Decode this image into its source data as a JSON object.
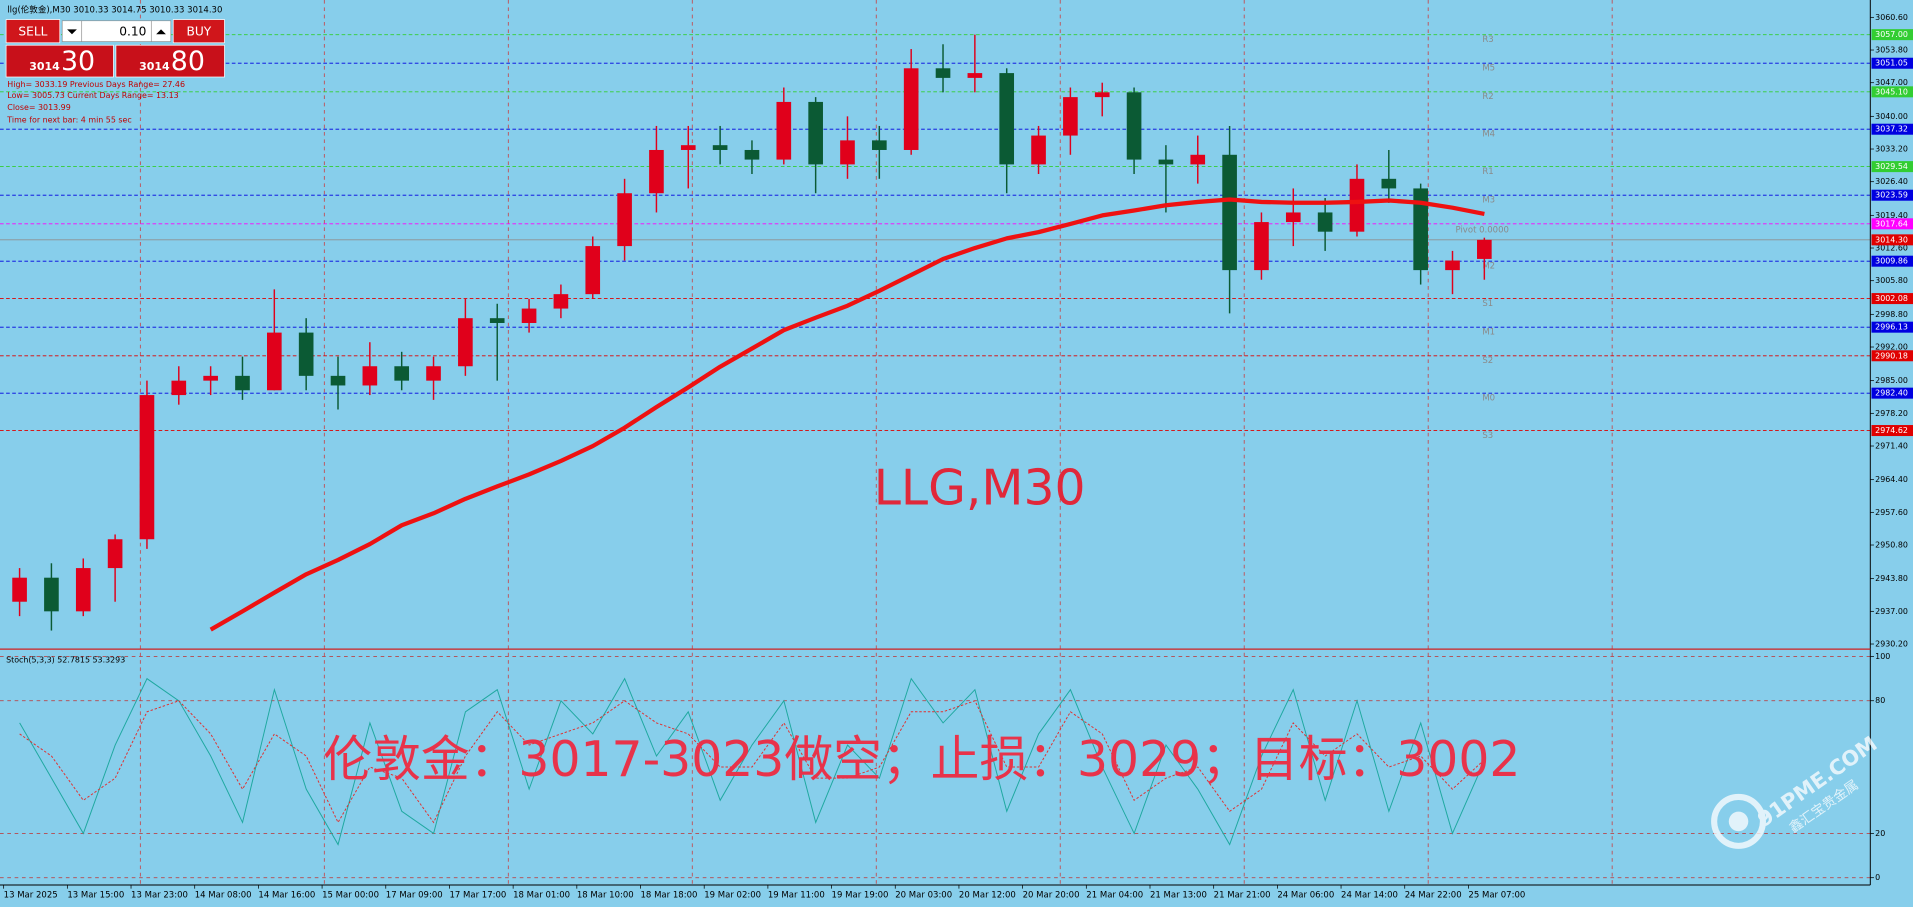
{
  "window": {
    "title": "llg(伦敦金),M30  3010.33 3014.75 3010.33 3014.30"
  },
  "trade_panel": {
    "sell": "SELL",
    "lot": "0.10",
    "buy": "BUY",
    "bid_main": "3014",
    "bid_big": "30",
    "ask_main": "3014",
    "ask_big": "80"
  },
  "info": [
    "High= 3033.19    Previous Days Range= 27.46",
    "Low= 3005.73    Current Days Range= 13.13",
    "Close= 3013.99",
    "Time for next bar: 4 min 55 sec"
  ],
  "logo": {
    "text": "91PME.COM",
    "subtext": "鑫汇宝贵金属"
  },
  "chart_data": [
    {
      "type": "candlestick",
      "watermark": "LLG,M30",
      "categories": [
        "13 Mar 2025",
        null,
        "13 Mar 15:00",
        null,
        "13 Mar 23:00",
        null,
        "14 Mar 08:00",
        null,
        "14 Mar 16:00",
        null,
        "15 Mar 00:00",
        null,
        "17 Mar 09:00",
        null,
        "17 Mar 17:00",
        null,
        "18 Mar 01:00",
        null,
        "18 Mar 10:00",
        null,
        "18 Mar 18:00",
        null,
        "19 Mar 02:00",
        null,
        "19 Mar 11:00",
        null,
        "19 Mar 19:00",
        null,
        "20 Mar 03:00",
        null,
        "20 Mar 12:00",
        null,
        "20 Mar 20:00",
        null,
        "21 Mar 04:00",
        null,
        "21 Mar 13:00",
        null,
        "21 Mar 21:00",
        null,
        "24 Mar 06:00",
        null,
        "24 Mar 14:00",
        null,
        "24 Mar 22:00",
        null,
        "25 Mar 07:00"
      ],
      "ohlc": {
        "up_color": "#e0001b",
        "down_color": "#0b5a34",
        "open": [
          2939,
          2944,
          2937,
          2946,
          2952,
          2982,
          2985,
          2986,
          2983,
          2995,
          2986,
          2984,
          2988,
          2985,
          2988,
          2998,
          2997,
          3000,
          3003,
          3013,
          3024,
          3033,
          3034,
          3033,
          3031,
          3043,
          3030,
          3035,
          3033,
          3050,
          3048,
          3049,
          3030,
          3036,
          3044,
          3045,
          3031,
          3030,
          3032,
          3008,
          3018,
          3020,
          3016,
          3027,
          3025,
          3008,
          3010.33
        ],
        "high": [
          2946,
          2947,
          2948,
          2953,
          2985,
          2988,
          2988,
          2990,
          3004,
          2998,
          2990,
          2993,
          2991,
          2990,
          3002,
          3001,
          3002,
          3005,
          3015,
          3027,
          3038,
          3038,
          3038,
          3035,
          3046,
          3044,
          3040,
          3038,
          3054,
          3055,
          3057,
          3050,
          3038,
          3046,
          3047,
          3046,
          3034,
          3036,
          3038,
          3020,
          3025,
          3023,
          3030,
          3033,
          3026,
          3012,
          3014.75
        ],
        "low": [
          2936,
          2933,
          2936,
          2939,
          2950,
          2980,
          2982,
          2981,
          2983,
          2983,
          2979,
          2982,
          2983,
          2981,
          2986,
          2985,
          2995,
          2998,
          3002,
          3010,
          3020,
          3025,
          3030,
          3028,
          3030,
          3024,
          3027,
          3027,
          3032,
          3045,
          3045,
          3024,
          3028,
          3032,
          3040,
          3028,
          3020,
          3026,
          2999,
          3006,
          3013,
          3012,
          3015,
          3022,
          3005,
          3003,
          3006
        ],
        "close": [
          2944,
          2937,
          2946,
          2952,
          2982,
          2985,
          2986,
          2983,
          2995,
          2986,
          2984,
          2988,
          2985,
          2988,
          2998,
          2997,
          3000,
          3003,
          3013,
          3024,
          3033,
          3034,
          3033,
          3031,
          3043,
          3030,
          3035,
          3033,
          3050,
          3048,
          3049,
          3030,
          3036,
          3044,
          3045,
          3031,
          3030,
          3032,
          3008,
          3018,
          3020,
          3016,
          3027,
          3025,
          3008,
          3010,
          3014.3
        ]
      },
      "ma": {
        "color": "#ee1111",
        "values": [
          null,
          null,
          null,
          null,
          null,
          null,
          2933.2,
          2937,
          2940.9,
          2944.7,
          2947.7,
          2951,
          2954.9,
          2957.4,
          2960.4,
          2963,
          2965.5,
          2968.3,
          2971.4,
          2975.2,
          2979.5,
          2983.6,
          2987.9,
          2991.7,
          2995.5,
          2998.1,
          3000.6,
          3003.7,
          3007,
          3010.3,
          3012.6,
          3014.6,
          3015.9,
          3017.6,
          3019.4,
          3020.4,
          3021.5,
          3022.2,
          3022.7,
          3022.2,
          3022,
          3022,
          3022.2,
          3022.5,
          3022,
          3021,
          3019.7
        ]
      },
      "ylim": [
        2929.4,
        3063.7
      ],
      "yticks": [
        {
          "value": 3060.6,
          "label": "3060.60"
        },
        {
          "value": 3053.8,
          "label": "3053.80"
        },
        {
          "value": 3047,
          "label": "3047.00"
        },
        {
          "value": 3040,
          "label": "3040.00"
        },
        {
          "value": 3033.2,
          "label": "3033.20"
        },
        {
          "value": 3026.4,
          "label": "3026.40"
        },
        {
          "value": 3019.4,
          "label": "3019.40"
        },
        {
          "value": 3012.6,
          "label": "3012.60"
        },
        {
          "value": 3005.8,
          "label": "3005.80"
        },
        {
          "value": 2998.8,
          "label": "2998.80"
        },
        {
          "value": 2992,
          "label": "2992.00"
        },
        {
          "value": 2985,
          "label": "2985.00"
        },
        {
          "value": 2978.2,
          "label": "2978.20"
        },
        {
          "value": 2971.4,
          "label": "2971.40"
        },
        {
          "value": 2964.4,
          "label": "2964.40"
        },
        {
          "value": 2957.6,
          "label": "2957.60"
        },
        {
          "value": 2950.8,
          "label": "2950.80"
        },
        {
          "value": 2943.8,
          "label": "2943.80"
        },
        {
          "value": 2937,
          "label": "2937.00"
        },
        {
          "value": 2930.2,
          "label": "2930.20"
        }
      ],
      "levels": [
        {
          "name": "R3",
          "value": 3057,
          "label": "3057.00",
          "color": "#32cd32"
        },
        {
          "name": "M5",
          "value": 3051.05,
          "label": "3051.05",
          "color": "#0000e0"
        },
        {
          "name": "R2",
          "value": 3045.1,
          "label": "3045.10",
          "color": "#32cd32"
        },
        {
          "name": "M4",
          "value": 3037.32,
          "label": "3037.32",
          "color": "#0000e0"
        },
        {
          "name": "R1",
          "value": 3029.54,
          "label": "3029.54",
          "color": "#32cd32"
        },
        {
          "name": "M3",
          "value": 3023.59,
          "label": "3023.59",
          "color": "#0000e0"
        },
        {
          "name": "Pivot  0.0000",
          "value": 3017.64,
          "label": "3017.64",
          "color": "#ff00ff"
        },
        {
          "name": "M2",
          "value": 3009.86,
          "label": "3009.86",
          "color": "#0000e0"
        },
        {
          "name": "S1",
          "value": 3002.08,
          "label": "3002.08",
          "color": "#e00000"
        },
        {
          "name": "M1",
          "value": 2996.13,
          "label": "2996.13",
          "color": "#0000e0"
        },
        {
          "name": "S2",
          "value": 2990.18,
          "label": "2990.18",
          "color": "#e00000"
        },
        {
          "name": "M0",
          "value": 2982.4,
          "label": "2982.40",
          "color": "#0000e0"
        },
        {
          "name": "S3",
          "value": 2974.62,
          "label": "2974.62",
          "color": "#e00000"
        }
      ],
      "current_price": {
        "value": 3014.3,
        "label": "3014.30",
        "color": "#e00000"
      }
    },
    {
      "type": "line",
      "title": "Stoch(5,3,3) 52.7815 53.3293",
      "annotation": "伦敦金：3017-3023做空；止损：3029；目标：3002",
      "series": [
        {
          "color": "#1fa8a0",
          "values": [
            70,
            45,
            20,
            60,
            90,
            80,
            55,
            25,
            85,
            40,
            15,
            70,
            30,
            20,
            75,
            85,
            40,
            80,
            65,
            90,
            55,
            75,
            35,
            60,
            80,
            25,
            60,
            45,
            90,
            70,
            85,
            30,
            65,
            85,
            50,
            20,
            60,
            40,
            15,
            55,
            85,
            35,
            80,
            30,
            70,
            20,
            52.7815
          ]
        },
        {
          "color": "#e03030",
          "dashed": true,
          "values": [
            65,
            55,
            35,
            45,
            75,
            80,
            65,
            40,
            65,
            55,
            25,
            50,
            45,
            25,
            55,
            75,
            60,
            65,
            70,
            80,
            70,
            65,
            50,
            50,
            70,
            45,
            45,
            50,
            75,
            75,
            80,
            50,
            50,
            75,
            65,
            35,
            45,
            50,
            30,
            40,
            70,
            55,
            65,
            50,
            55,
            40,
            53.3293
          ]
        }
      ],
      "ylim": [
        -3.3,
        102.8
      ],
      "yticks": [
        100,
        80,
        20,
        0
      ],
      "grid": true
    }
  ]
}
